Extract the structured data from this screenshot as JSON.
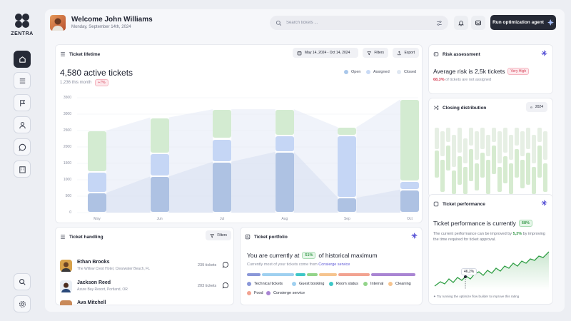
{
  "app": {
    "name": "ZENTRA"
  },
  "header": {
    "welcome": "Welcome John Williams",
    "date": "Monday, September 14th, 2024",
    "search_placeholder": "Search tickets ...",
    "run_button": "Run optimization agent"
  },
  "sidebar": {
    "items": [
      {
        "name": "home",
        "icon": "home-icon",
        "active": true
      },
      {
        "name": "tickets",
        "icon": "list-icon"
      },
      {
        "name": "flags",
        "icon": "flag-icon"
      },
      {
        "name": "users",
        "icon": "user-icon"
      },
      {
        "name": "chat",
        "icon": "chat-icon"
      },
      {
        "name": "reports",
        "icon": "building-icon"
      }
    ],
    "bottom": [
      {
        "name": "search",
        "icon": "search-icon"
      },
      {
        "name": "settings",
        "icon": "gear-icon"
      }
    ]
  },
  "lifetime": {
    "title": "Ticket lifetime",
    "date_range": "May 14, 2024 - Oct 14, 2024",
    "filters": "Filters",
    "export": "Export",
    "active": "4,580 active tickets",
    "this_month": "1,236 this month",
    "change": "+7%",
    "legend": [
      {
        "label": "Open",
        "color": "#a9c7ea"
      },
      {
        "label": "Assigned",
        "color": "#c9daf5"
      },
      {
        "label": "Closed",
        "color": "#dfe7f2"
      }
    ]
  },
  "chart_data": {
    "type": "bar",
    "stacked": true,
    "categories": [
      "May",
      "Jun",
      "Jul",
      "Aug",
      "Sep",
      "Oct"
    ],
    "yticks": [
      "3500",
      "3000",
      "2500",
      "2000",
      "1500",
      "1000",
      "500",
      "0"
    ],
    "ylim": [
      0,
      3500
    ],
    "series": [
      {
        "segment": "bottom",
        "color": "#aec2e3",
        "values": [
          600,
          1100,
          1550,
          1850,
          450,
          700
        ]
      },
      {
        "segment": "middle",
        "color": "#c5d6f5",
        "values": [
          650,
          700,
          700,
          500,
          1900,
          250
        ]
      },
      {
        "segment": "top",
        "color": "#d3ebd1",
        "values": [
          1250,
          1100,
          900,
          800,
          250,
          2500
        ]
      }
    ],
    "grid": true
  },
  "risk": {
    "title": "Risk assessment",
    "headline": "Average risk is 2,5k tickets",
    "level": "Very High",
    "sub_pct": "68,3%",
    "sub_text": "of tickets are not assigned"
  },
  "distribution": {
    "title": "Closing distribution",
    "year": "2024"
  },
  "performance": {
    "title": "Ticket performance",
    "headline": "Ticket performance is currently",
    "value": "68%",
    "desc_a": "The current performance can be improved by",
    "desc_pct": "5,3%",
    "desc_b": "by improving the time required for ticket approval.",
    "point_label": "46,2%",
    "tip": "Try running the optimize flow builder to improve this rating"
  },
  "handling": {
    "title": "Ticket handling",
    "filters": "Filters",
    "people": [
      {
        "name": "Ethan Brooks",
        "address": "The Willow Crest Hotel, Clearwater Beach, FL",
        "tickets": "239 tickets"
      },
      {
        "name": "Jackson Reed",
        "address": "Azure Bay Resort, Portland, OR",
        "tickets": "203 tickets"
      },
      {
        "name": "Ava Mitchell",
        "address": "",
        "tickets": ""
      }
    ]
  },
  "portfolio": {
    "title": "Ticket portfolio",
    "headline_a": "You are currently at",
    "pct": "51%",
    "headline_b": "of historical maximum",
    "sub_a": "Currently most of your tickets come from",
    "sub_b": "Consierge service",
    "legend": [
      {
        "label": "Technical tickets",
        "color": "#8a97d8"
      },
      {
        "label": "Guest booking",
        "color": "#9fd0f0"
      },
      {
        "label": "Room status",
        "color": "#3ec7c7"
      },
      {
        "label": "Internal",
        "color": "#93d48a"
      },
      {
        "label": "Cleaning",
        "color": "#f6c48f"
      },
      {
        "label": "Food",
        "color": "#f2a391"
      },
      {
        "label": "Consierge service",
        "color": "#a985d3"
      }
    ]
  }
}
